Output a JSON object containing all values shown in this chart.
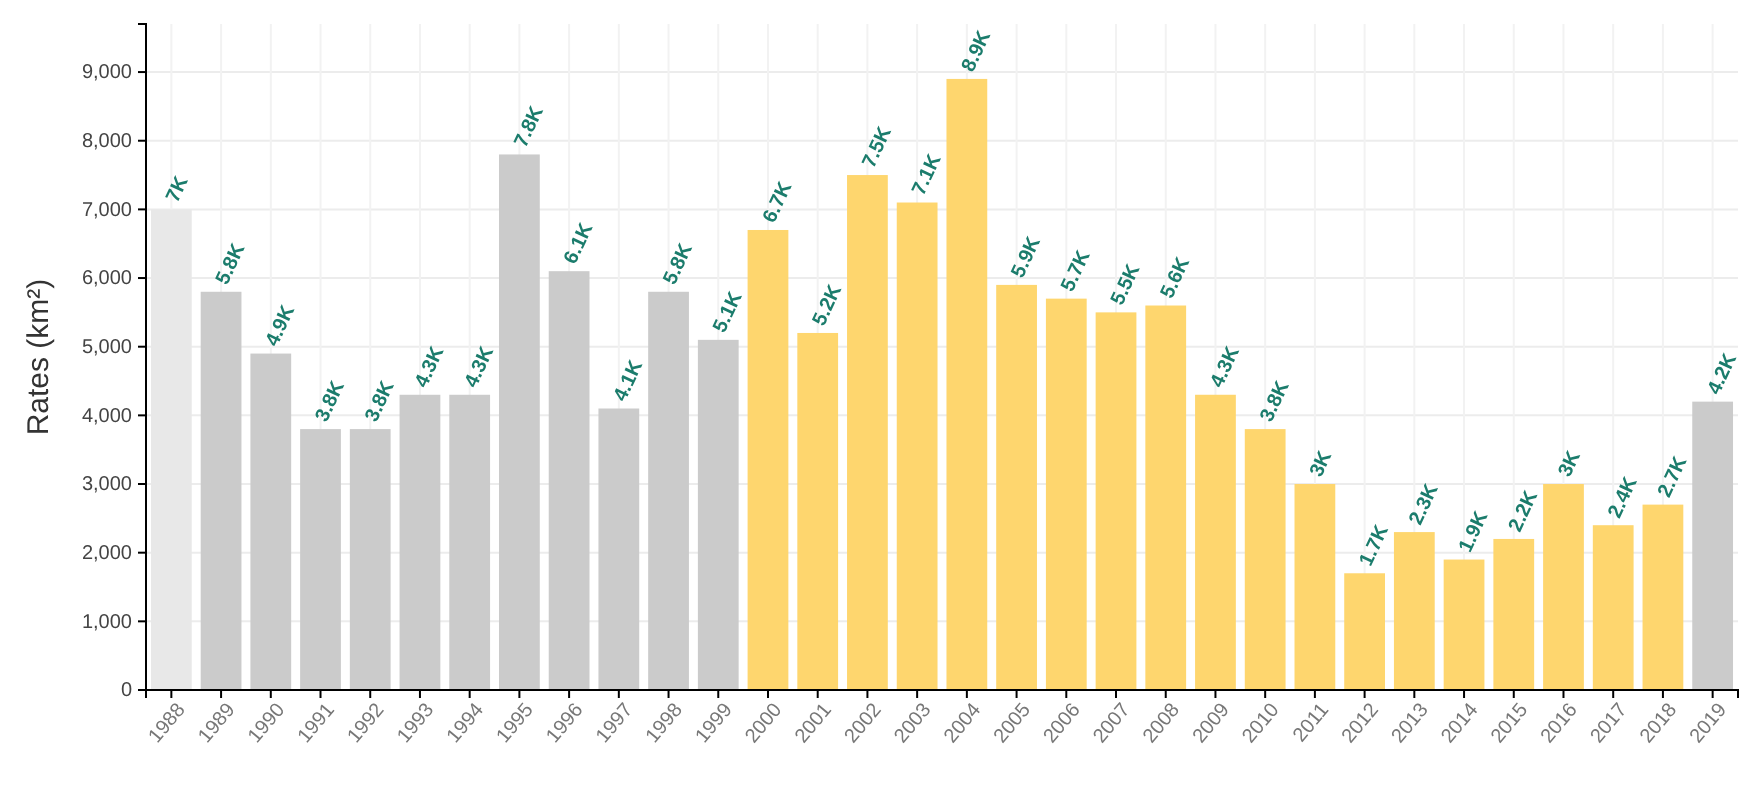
{
  "chart_data": {
    "type": "bar",
    "ylabel": "Rates (km²)",
    "categories": [
      "1988",
      "1989",
      "1990",
      "1991",
      "1992",
      "1993",
      "1994",
      "1995",
      "1996",
      "1997",
      "1998",
      "1999",
      "2000",
      "2001",
      "2002",
      "2003",
      "2004",
      "2005",
      "2006",
      "2007",
      "2008",
      "2009",
      "2010",
      "2011",
      "2012",
      "2013",
      "2014",
      "2015",
      "2016",
      "2017",
      "2018",
      "2019"
    ],
    "values": [
      7000,
      5800,
      4900,
      3800,
      3800,
      4300,
      4300,
      7800,
      6100,
      4100,
      5800,
      5100,
      6700,
      5200,
      7500,
      7100,
      8900,
      5900,
      5700,
      5500,
      5600,
      4300,
      3800,
      3000,
      1700,
      2300,
      1900,
      2200,
      3000,
      2400,
      2700,
      4200
    ],
    "value_labels": [
      "7K",
      "5.8K",
      "4.9K",
      "3.8K",
      "3.8K",
      "4.3K",
      "4.3K",
      "7.8K",
      "6.1K",
      "4.1K",
      "5.8K",
      "5.1K",
      "6.7K",
      "5.2K",
      "7.5K",
      "7.1K",
      "8.9K",
      "5.9K",
      "5.7K",
      "5.5K",
      "5.6K",
      "4.3K",
      "3.8K",
      "3K",
      "1.7K",
      "2.3K",
      "1.9K",
      "2.2K",
      "3K",
      "2.4K",
      "2.7K",
      "4.2K"
    ],
    "colors": [
      "#e8e8e8",
      "#cbcbcb",
      "#cbcbcb",
      "#cbcbcb",
      "#cbcbcb",
      "#cbcbcb",
      "#cbcbcb",
      "#cbcbcb",
      "#cbcbcb",
      "#cbcbcb",
      "#cbcbcb",
      "#cbcbcb",
      "#fed66e",
      "#fed66e",
      "#fed66e",
      "#fed66e",
      "#fed66e",
      "#fed66e",
      "#fed66e",
      "#fed66e",
      "#fed66e",
      "#fed66e",
      "#fed66e",
      "#fed66e",
      "#fed66e",
      "#fed66e",
      "#fed66e",
      "#fed66e",
      "#fed66e",
      "#fed66e",
      "#fed66e",
      "#cbcbcb"
    ],
    "ylim": [
      0,
      9700
    ],
    "yticks": [
      {
        "value": 0,
        "label": "0"
      },
      {
        "value": 1000,
        "label": "1,000"
      },
      {
        "value": 2000,
        "label": "2,000"
      },
      {
        "value": 3000,
        "label": "3,000"
      },
      {
        "value": 4000,
        "label": "4,000"
      },
      {
        "value": 5000,
        "label": "5,000"
      },
      {
        "value": 6000,
        "label": "6,000"
      },
      {
        "value": 7000,
        "label": "7,000"
      },
      {
        "value": 8000,
        "label": "8,000"
      },
      {
        "value": 9000,
        "label": "9,000"
      }
    ],
    "grid": true
  }
}
